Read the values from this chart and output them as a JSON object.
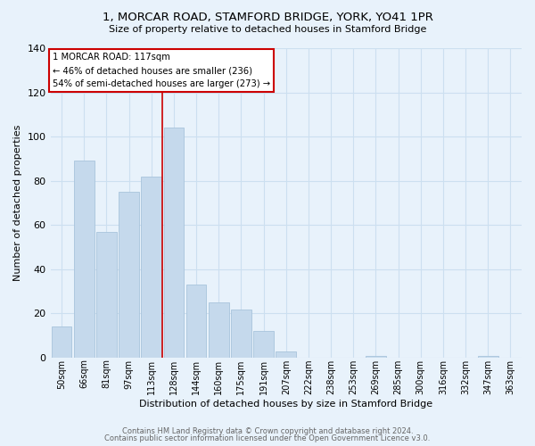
{
  "title1": "1, MORCAR ROAD, STAMFORD BRIDGE, YORK, YO41 1PR",
  "title2": "Size of property relative to detached houses in Stamford Bridge",
  "xlabel": "Distribution of detached houses by size in Stamford Bridge",
  "ylabel": "Number of detached properties",
  "footnote1": "Contains HM Land Registry data © Crown copyright and database right 2024.",
  "footnote2": "Contains public sector information licensed under the Open Government Licence v3.0.",
  "bar_labels": [
    "50sqm",
    "66sqm",
    "81sqm",
    "97sqm",
    "113sqm",
    "128sqm",
    "144sqm",
    "160sqm",
    "175sqm",
    "191sqm",
    "207sqm",
    "222sqm",
    "238sqm",
    "253sqm",
    "269sqm",
    "285sqm",
    "300sqm",
    "316sqm",
    "332sqm",
    "347sqm",
    "363sqm"
  ],
  "bar_values": [
    14,
    89,
    57,
    75,
    82,
    104,
    33,
    25,
    22,
    12,
    3,
    0,
    0,
    0,
    1,
    0,
    0,
    0,
    0,
    1,
    0
  ],
  "bar_color": "#c5d9ec",
  "bar_edge_color": "#a8c4dc",
  "grid_color": "#ccdff0",
  "background_color": "#e8f2fb",
  "vline_x_index": 4.5,
  "vline_color": "#cc0000",
  "annotation_title": "1 MORCAR ROAD: 117sqm",
  "annotation_line1": "← 46% of detached houses are smaller (236)",
  "annotation_line2": "54% of semi-detached houses are larger (273) →",
  "annotation_box_color": "#ffffff",
  "annotation_box_edge": "#cc0000",
  "ylim": [
    0,
    140
  ],
  "yticks": [
    0,
    20,
    40,
    60,
    80,
    100,
    120,
    140
  ]
}
